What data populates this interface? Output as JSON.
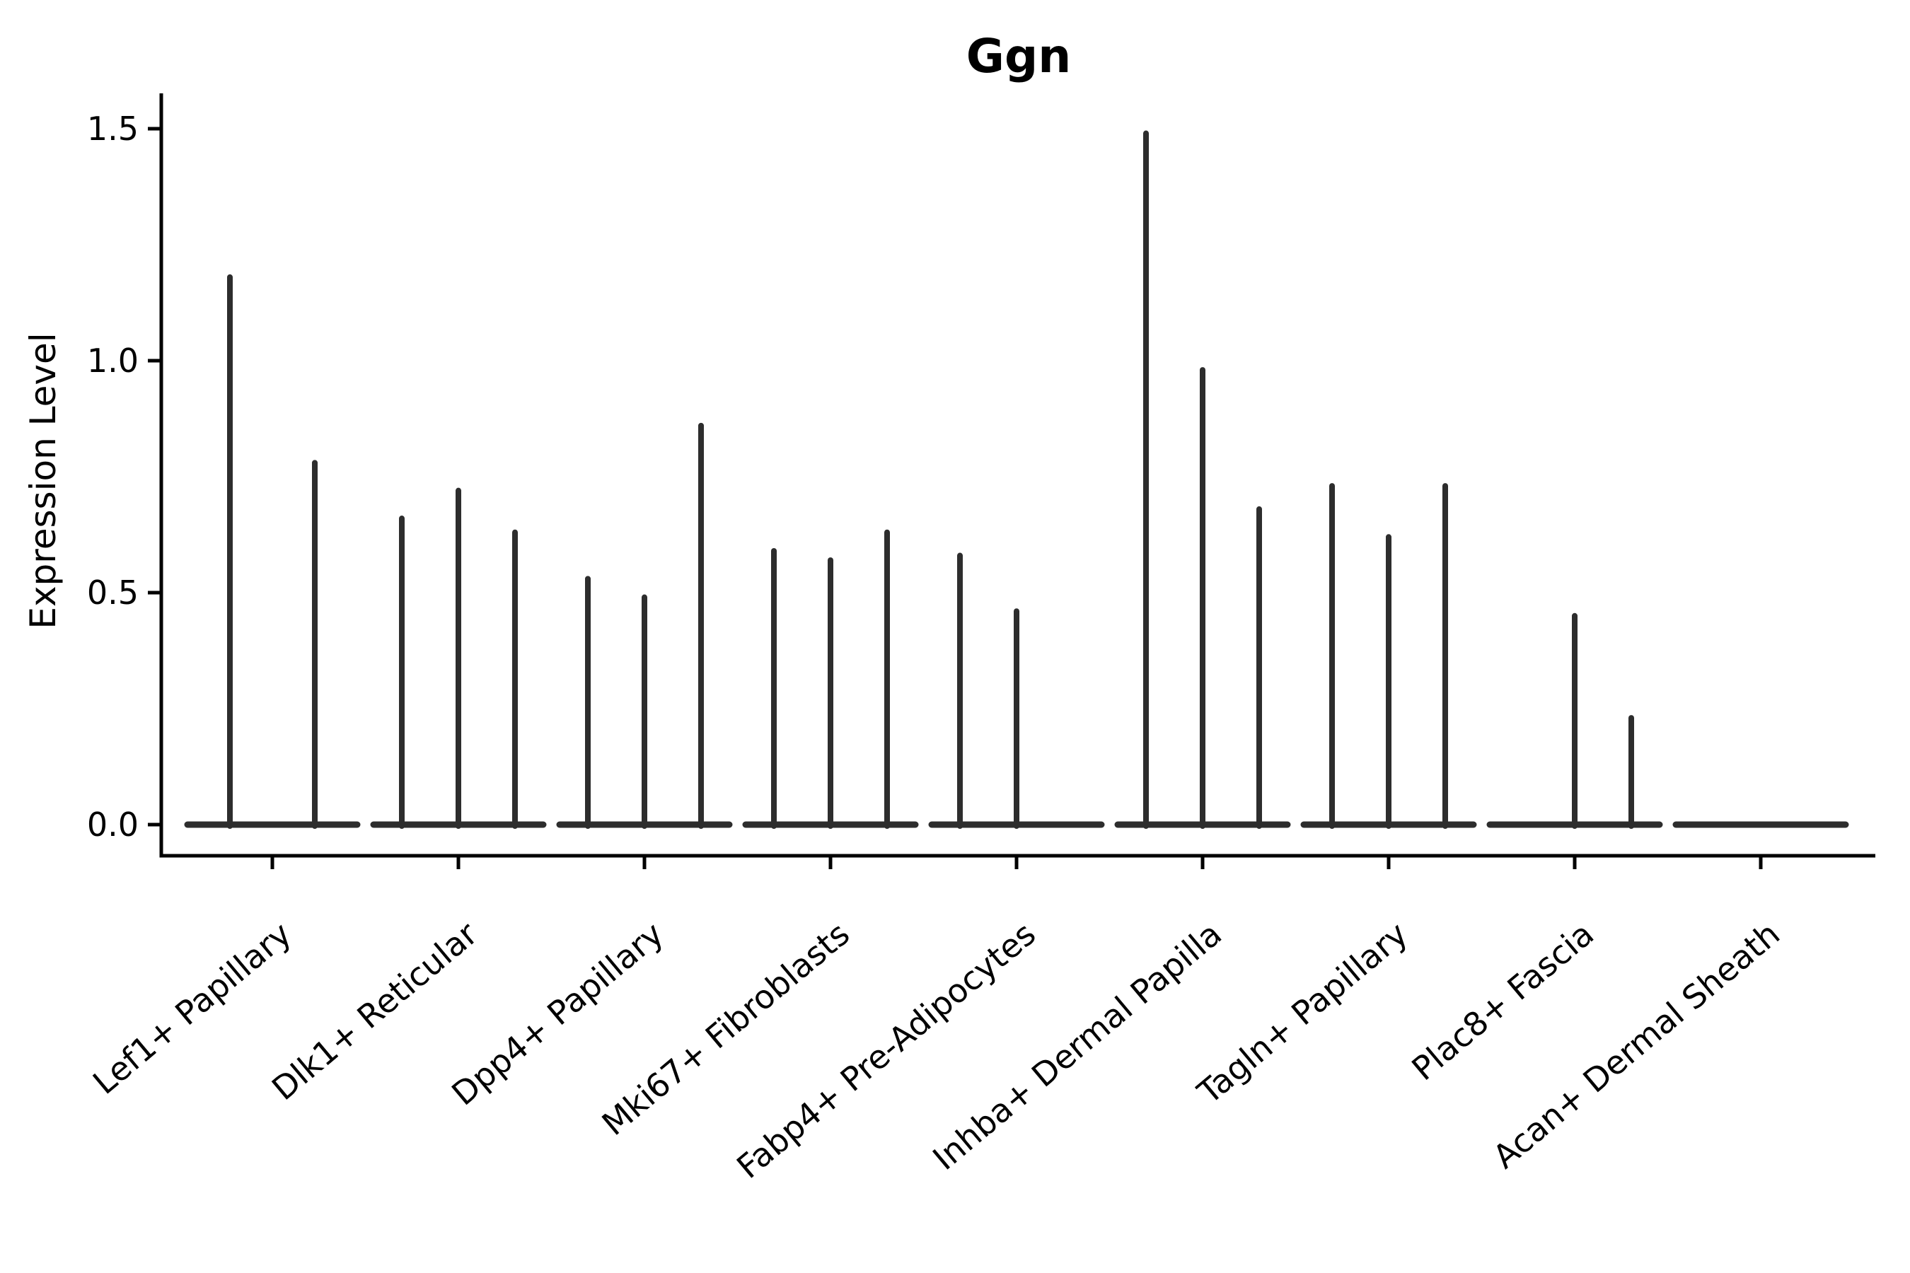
{
  "chart_data": {
    "type": "violin",
    "title": "Ggn",
    "ylabel": "Expression Level",
    "xlabel": "",
    "yticks": [
      0.0,
      0.5,
      1.0,
      1.5
    ],
    "ytick_labels": [
      "0.0",
      "0.5",
      "1.0",
      "1.5"
    ],
    "ylim": [
      -0.07,
      1.57
    ],
    "grid": false,
    "legend": null,
    "categories": [
      "Lef1+ Papillary",
      "Dlk1+ Reticular",
      "Dpp4+ Papillary",
      "Mki67+ Fibroblasts",
      "Fabp4+ Pre-Adipocytes",
      "Inhba+ Dermal Papilla",
      "Tagln+ Papillary",
      "Plac8+ Fascia",
      "Acan+ Dermal Sheath"
    ],
    "series": [
      {
        "category": "Lef1+ Papillary",
        "violin_peaks": [
          1.18,
          0.78
        ]
      },
      {
        "category": "Dlk1+ Reticular",
        "violin_peaks": [
          0.66,
          0.72,
          0.63
        ]
      },
      {
        "category": "Dpp4+ Papillary",
        "violin_peaks": [
          0.53,
          0.49,
          0.86
        ]
      },
      {
        "category": "Mki67+ Fibroblasts",
        "violin_peaks": [
          0.59,
          0.57,
          0.63
        ]
      },
      {
        "category": "Fabp4+ Pre-Adipocytes",
        "violin_peaks": [
          0.58,
          0.46,
          0.0
        ]
      },
      {
        "category": "Inhba+ Dermal Papilla",
        "violin_peaks": [
          1.49,
          0.98,
          0.68
        ]
      },
      {
        "category": "Tagln+ Papillary",
        "violin_peaks": [
          0.73,
          0.62,
          0.73
        ]
      },
      {
        "category": "Plac8+ Fascia",
        "violin_peaks": [
          0.0,
          0.45,
          0.23
        ]
      },
      {
        "category": "Acan+ Dermal Sheath",
        "violin_peaks": [
          0.0,
          0.0,
          0.0
        ]
      }
    ],
    "violin_note": "Each category shows a wide flat violin base at 0 with one extremely thin spike per violin reaching the listed peak expression value; 0.0 means flat baseline only.",
    "colors": {
      "violin_line": "#2d2d2d",
      "axis": "#000000",
      "text": "#000000",
      "background": "#ffffff"
    }
  }
}
